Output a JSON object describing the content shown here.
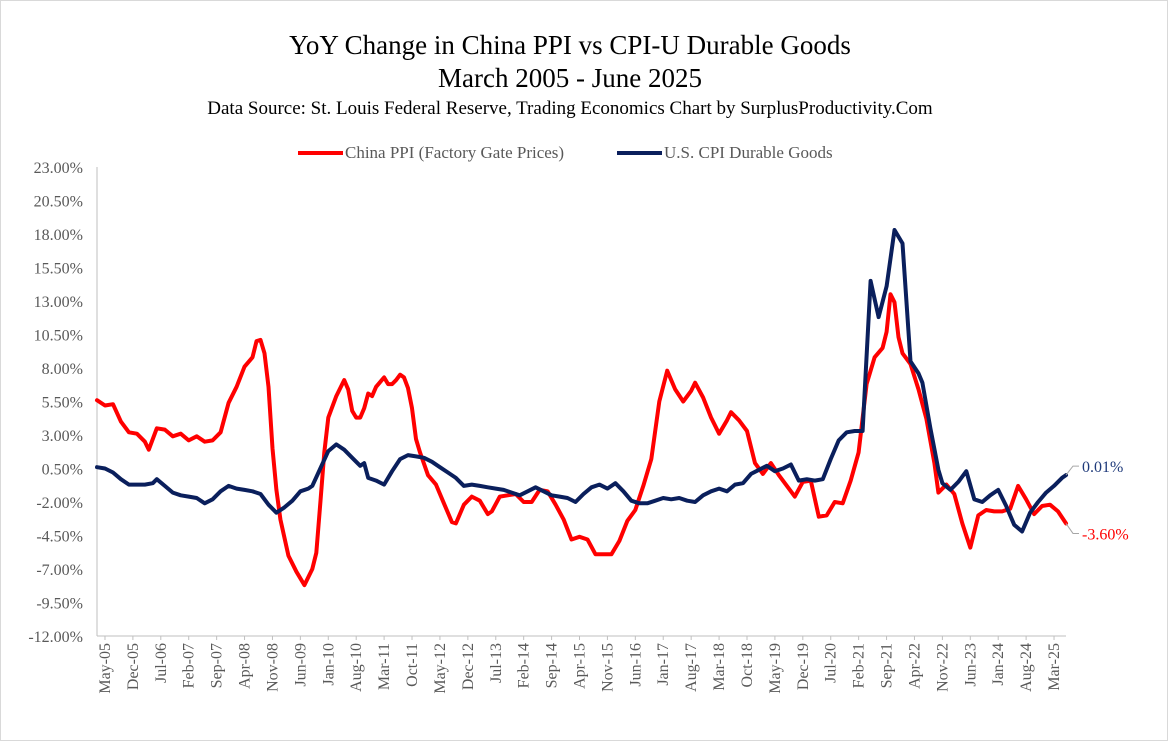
{
  "chart_data": {
    "type": "line",
    "title": "YoY Change in China PPI vs CPI-U Durable Goods",
    "subtitle": "March 2005 - June 2025",
    "source": "Data Source: St. Louis Federal Reserve, Trading Economics   Chart by SurplusProductivity.Com",
    "xlabel": "",
    "ylabel": "",
    "ylim": [
      -12,
      23
    ],
    "y_ticks": [
      "23.00%",
      "20.50%",
      "18.00%",
      "15.50%",
      "13.00%",
      "10.50%",
      "8.00%",
      "5.50%",
      "3.00%",
      "0.50%",
      "-2.00%",
      "-4.50%",
      "-7.00%",
      "-9.50%",
      "-12.00%"
    ],
    "x_ticks": [
      "May-05",
      "Dec-05",
      "Jul-06",
      "Feb-07",
      "Sep-07",
      "Apr-08",
      "Nov-08",
      "Jun-09",
      "Jan-10",
      "Aug-10",
      "Mar-11",
      "Oct-11",
      "May-12",
      "Dec-12",
      "Jul-13",
      "Feb-14",
      "Sep-14",
      "Apr-15",
      "Nov-15",
      "Jun-16",
      "Jan-17",
      "Aug-17",
      "Mar-18",
      "Oct-18",
      "May-19",
      "Dec-19",
      "Jul-20",
      "Feb-21",
      "Sep-21",
      "Apr-22",
      "Nov-22",
      "Jun-23",
      "Jan-24",
      "Aug-24",
      "Mar-25"
    ],
    "x_range": [
      "Mar-05",
      "Jun-25"
    ],
    "grid": false,
    "legend_position": "top",
    "series": [
      {
        "name": "China PPI (Factory Gate Prices)",
        "color": "#ff0000",
        "points": [
          [
            "2005-03",
            5.6
          ],
          [
            "2005-05",
            5.2
          ],
          [
            "2005-07",
            5.3
          ],
          [
            "2005-09",
            4.0
          ],
          [
            "2005-11",
            3.2
          ],
          [
            "2006-01",
            3.1
          ],
          [
            "2006-03",
            2.5
          ],
          [
            "2006-04",
            1.9
          ],
          [
            "2006-06",
            3.5
          ],
          [
            "2006-08",
            3.4
          ],
          [
            "2006-10",
            2.9
          ],
          [
            "2006-12",
            3.1
          ],
          [
            "2007-02",
            2.6
          ],
          [
            "2007-04",
            2.9
          ],
          [
            "2007-06",
            2.5
          ],
          [
            "2007-08",
            2.6
          ],
          [
            "2007-10",
            3.2
          ],
          [
            "2007-12",
            5.4
          ],
          [
            "2008-02",
            6.6
          ],
          [
            "2008-04",
            8.1
          ],
          [
            "2008-06",
            8.8
          ],
          [
            "2008-07",
            10.0
          ],
          [
            "2008-08",
            10.1
          ],
          [
            "2008-09",
            9.1
          ],
          [
            "2008-10",
            6.6
          ],
          [
            "2008-11",
            2.0
          ],
          [
            "2008-12",
            -1.1
          ],
          [
            "2009-01",
            -3.3
          ],
          [
            "2009-03",
            -6.0
          ],
          [
            "2009-05",
            -7.2
          ],
          [
            "2009-07",
            -8.2
          ],
          [
            "2009-09",
            -7.0
          ],
          [
            "2009-10",
            -5.8
          ],
          [
            "2009-11",
            -2.1
          ],
          [
            "2009-12",
            1.7
          ],
          [
            "2010-01",
            4.3
          ],
          [
            "2010-03",
            5.9
          ],
          [
            "2010-05",
            7.1
          ],
          [
            "2010-06",
            6.4
          ],
          [
            "2010-07",
            4.8
          ],
          [
            "2010-08",
            4.3
          ],
          [
            "2010-09",
            4.3
          ],
          [
            "2010-10",
            5.0
          ],
          [
            "2010-11",
            6.1
          ],
          [
            "2010-12",
            5.9
          ],
          [
            "2011-01",
            6.6
          ],
          [
            "2011-03",
            7.3
          ],
          [
            "2011-04",
            6.8
          ],
          [
            "2011-05",
            6.8
          ],
          [
            "2011-06",
            7.1
          ],
          [
            "2011-07",
            7.5
          ],
          [
            "2011-08",
            7.3
          ],
          [
            "2011-09",
            6.5
          ],
          [
            "2011-10",
            5.0
          ],
          [
            "2011-11",
            2.7
          ],
          [
            "2011-12",
            1.7
          ],
          [
            "2012-02",
            0.0
          ],
          [
            "2012-04",
            -0.7
          ],
          [
            "2012-06",
            -2.1
          ],
          [
            "2012-08",
            -3.5
          ],
          [
            "2012-09",
            -3.6
          ],
          [
            "2012-11",
            -2.2
          ],
          [
            "2013-01",
            -1.6
          ],
          [
            "2013-03",
            -1.9
          ],
          [
            "2013-05",
            -2.9
          ],
          [
            "2013-06",
            -2.7
          ],
          [
            "2013-08",
            -1.6
          ],
          [
            "2013-10",
            -1.5
          ],
          [
            "2013-12",
            -1.4
          ],
          [
            "2014-02",
            -2.0
          ],
          [
            "2014-04",
            -2.0
          ],
          [
            "2014-06",
            -1.1
          ],
          [
            "2014-08",
            -1.2
          ],
          [
            "2014-10",
            -2.2
          ],
          [
            "2014-12",
            -3.3
          ],
          [
            "2015-02",
            -4.8
          ],
          [
            "2015-04",
            -4.6
          ],
          [
            "2015-06",
            -4.8
          ],
          [
            "2015-08",
            -5.9
          ],
          [
            "2015-10",
            -5.9
          ],
          [
            "2015-12",
            -5.9
          ],
          [
            "2016-02",
            -4.9
          ],
          [
            "2016-04",
            -3.4
          ],
          [
            "2016-06",
            -2.6
          ],
          [
            "2016-08",
            -0.8
          ],
          [
            "2016-10",
            1.2
          ],
          [
            "2016-12",
            5.5
          ],
          [
            "2017-02",
            7.8
          ],
          [
            "2017-04",
            6.4
          ],
          [
            "2017-06",
            5.5
          ],
          [
            "2017-08",
            6.3
          ],
          [
            "2017-09",
            6.9
          ],
          [
            "2017-11",
            5.8
          ],
          [
            "2018-01",
            4.3
          ],
          [
            "2018-03",
            3.1
          ],
          [
            "2018-05",
            4.1
          ],
          [
            "2018-06",
            4.7
          ],
          [
            "2018-08",
            4.1
          ],
          [
            "2018-10",
            3.3
          ],
          [
            "2018-12",
            0.9
          ],
          [
            "2019-02",
            0.1
          ],
          [
            "2019-04",
            0.9
          ],
          [
            "2019-06",
            0.0
          ],
          [
            "2019-08",
            -0.8
          ],
          [
            "2019-10",
            -1.6
          ],
          [
            "2019-12",
            -0.5
          ],
          [
            "2020-02",
            -0.4
          ],
          [
            "2020-04",
            -3.1
          ],
          [
            "2020-06",
            -3.0
          ],
          [
            "2020-08",
            -2.0
          ],
          [
            "2020-10",
            -2.1
          ],
          [
            "2020-12",
            -0.4
          ],
          [
            "2021-02",
            1.7
          ],
          [
            "2021-04",
            6.8
          ],
          [
            "2021-06",
            8.8
          ],
          [
            "2021-08",
            9.5
          ],
          [
            "2021-09",
            10.7
          ],
          [
            "2021-10",
            13.5
          ],
          [
            "2021-11",
            12.9
          ],
          [
            "2021-12",
            10.3
          ],
          [
            "2022-01",
            9.1
          ],
          [
            "2022-03",
            8.3
          ],
          [
            "2022-05",
            6.4
          ],
          [
            "2022-07",
            4.2
          ],
          [
            "2022-09",
            0.9
          ],
          [
            "2022-10",
            -1.3
          ],
          [
            "2022-12",
            -0.7
          ],
          [
            "2023-02",
            -1.4
          ],
          [
            "2023-04",
            -3.6
          ],
          [
            "2023-06",
            -5.4
          ],
          [
            "2023-08",
            -3.0
          ],
          [
            "2023-10",
            -2.6
          ],
          [
            "2023-12",
            -2.7
          ],
          [
            "2024-02",
            -2.7
          ],
          [
            "2024-04",
            -2.5
          ],
          [
            "2024-06",
            -0.8
          ],
          [
            "2024-08",
            -1.8
          ],
          [
            "2024-10",
            -2.9
          ],
          [
            "2024-12",
            -2.3
          ],
          [
            "2025-02",
            -2.2
          ],
          [
            "2025-04",
            -2.7
          ],
          [
            "2025-06",
            -3.6
          ]
        ]
      },
      {
        "name": "U.S. CPI Durable Goods",
        "color": "#0a1f5c",
        "points": [
          [
            "2005-03",
            0.6
          ],
          [
            "2005-05",
            0.5
          ],
          [
            "2005-07",
            0.2
          ],
          [
            "2005-09",
            -0.3
          ],
          [
            "2005-11",
            -0.7
          ],
          [
            "2006-01",
            -0.7
          ],
          [
            "2006-03",
            -0.7
          ],
          [
            "2006-05",
            -0.6
          ],
          [
            "2006-06",
            -0.3
          ],
          [
            "2006-08",
            -0.8
          ],
          [
            "2006-10",
            -1.3
          ],
          [
            "2006-12",
            -1.5
          ],
          [
            "2007-02",
            -1.6
          ],
          [
            "2007-04",
            -1.7
          ],
          [
            "2007-06",
            -2.1
          ],
          [
            "2007-08",
            -1.8
          ],
          [
            "2007-10",
            -1.2
          ],
          [
            "2007-12",
            -0.8
          ],
          [
            "2008-02",
            -1.0
          ],
          [
            "2008-04",
            -1.1
          ],
          [
            "2008-06",
            -1.2
          ],
          [
            "2008-08",
            -1.4
          ],
          [
            "2008-10",
            -2.2
          ],
          [
            "2008-12",
            -2.8
          ],
          [
            "2009-02",
            -2.4
          ],
          [
            "2009-04",
            -1.9
          ],
          [
            "2009-06",
            -1.2
          ],
          [
            "2009-08",
            -1.0
          ],
          [
            "2009-09",
            -0.8
          ],
          [
            "2009-11",
            0.5
          ],
          [
            "2010-01",
            1.8
          ],
          [
            "2010-03",
            2.3
          ],
          [
            "2010-05",
            1.9
          ],
          [
            "2010-07",
            1.3
          ],
          [
            "2010-09",
            0.7
          ],
          [
            "2010-10",
            0.9
          ],
          [
            "2010-11",
            -0.2
          ],
          [
            "2011-01",
            -0.4
          ],
          [
            "2011-03",
            -0.7
          ],
          [
            "2011-05",
            0.3
          ],
          [
            "2011-07",
            1.2
          ],
          [
            "2011-09",
            1.5
          ],
          [
            "2011-11",
            1.4
          ],
          [
            "2012-01",
            1.3
          ],
          [
            "2012-03",
            1.0
          ],
          [
            "2012-05",
            0.6
          ],
          [
            "2012-07",
            0.2
          ],
          [
            "2012-09",
            -0.2
          ],
          [
            "2012-11",
            -0.8
          ],
          [
            "2013-01",
            -0.7
          ],
          [
            "2013-03",
            -0.8
          ],
          [
            "2013-05",
            -0.9
          ],
          [
            "2013-07",
            -1.0
          ],
          [
            "2013-09",
            -1.1
          ],
          [
            "2013-11",
            -1.3
          ],
          [
            "2014-01",
            -1.5
          ],
          [
            "2014-03",
            -1.2
          ],
          [
            "2014-05",
            -0.9
          ],
          [
            "2014-07",
            -1.2
          ],
          [
            "2014-09",
            -1.5
          ],
          [
            "2014-11",
            -1.6
          ],
          [
            "2015-01",
            -1.7
          ],
          [
            "2015-03",
            -2.0
          ],
          [
            "2015-05",
            -1.4
          ],
          [
            "2015-07",
            -0.9
          ],
          [
            "2015-09",
            -0.7
          ],
          [
            "2015-11",
            -1.0
          ],
          [
            "2016-01",
            -0.6
          ],
          [
            "2016-03",
            -1.2
          ],
          [
            "2016-05",
            -1.9
          ],
          [
            "2016-07",
            -2.1
          ],
          [
            "2016-09",
            -2.1
          ],
          [
            "2016-11",
            -1.9
          ],
          [
            "2017-01",
            -1.7
          ],
          [
            "2017-03",
            -1.8
          ],
          [
            "2017-05",
            -1.7
          ],
          [
            "2017-07",
            -1.9
          ],
          [
            "2017-09",
            -2.0
          ],
          [
            "2017-11",
            -1.5
          ],
          [
            "2018-01",
            -1.2
          ],
          [
            "2018-03",
            -1.0
          ],
          [
            "2018-05",
            -1.2
          ],
          [
            "2018-07",
            -0.7
          ],
          [
            "2018-09",
            -0.6
          ],
          [
            "2018-11",
            0.1
          ],
          [
            "2019-01",
            0.4
          ],
          [
            "2019-03",
            0.7
          ],
          [
            "2019-05",
            0.3
          ],
          [
            "2019-07",
            0.5
          ],
          [
            "2019-09",
            0.8
          ],
          [
            "2019-11",
            -0.4
          ],
          [
            "2020-01",
            -0.3
          ],
          [
            "2020-03",
            -0.4
          ],
          [
            "2020-05",
            -0.3
          ],
          [
            "2020-07",
            1.2
          ],
          [
            "2020-09",
            2.6
          ],
          [
            "2020-11",
            3.2
          ],
          [
            "2021-01",
            3.3
          ],
          [
            "2021-03",
            3.3
          ],
          [
            "2021-05",
            14.5
          ],
          [
            "2021-07",
            11.8
          ],
          [
            "2021-09",
            14.1
          ],
          [
            "2021-11",
            18.3
          ],
          [
            "2022-01",
            17.3
          ],
          [
            "2022-03",
            8.5
          ],
          [
            "2022-05",
            7.6
          ],
          [
            "2022-06",
            6.9
          ],
          [
            "2022-08",
            3.5
          ],
          [
            "2022-10",
            0.4
          ],
          [
            "2022-11",
            -0.6
          ],
          [
            "2023-01",
            -1.1
          ],
          [
            "2023-03",
            -0.5
          ],
          [
            "2023-05",
            0.3
          ],
          [
            "2023-07",
            -1.8
          ],
          [
            "2023-09",
            -2.0
          ],
          [
            "2023-11",
            -1.5
          ],
          [
            "2024-01",
            -1.1
          ],
          [
            "2024-03",
            -2.3
          ],
          [
            "2024-05",
            -3.7
          ],
          [
            "2024-07",
            -4.2
          ],
          [
            "2024-09",
            -2.8
          ],
          [
            "2024-11",
            -2.0
          ],
          [
            "2025-01",
            -1.3
          ],
          [
            "2025-03",
            -0.8
          ],
          [
            "2025-05",
            -0.2
          ],
          [
            "2025-06",
            0.01
          ]
        ]
      }
    ],
    "annotations": [
      {
        "series": 1,
        "date": "2025-06",
        "label": "0.01%"
      },
      {
        "series": 0,
        "date": "2025-06",
        "label": "-3.60%"
      }
    ]
  }
}
